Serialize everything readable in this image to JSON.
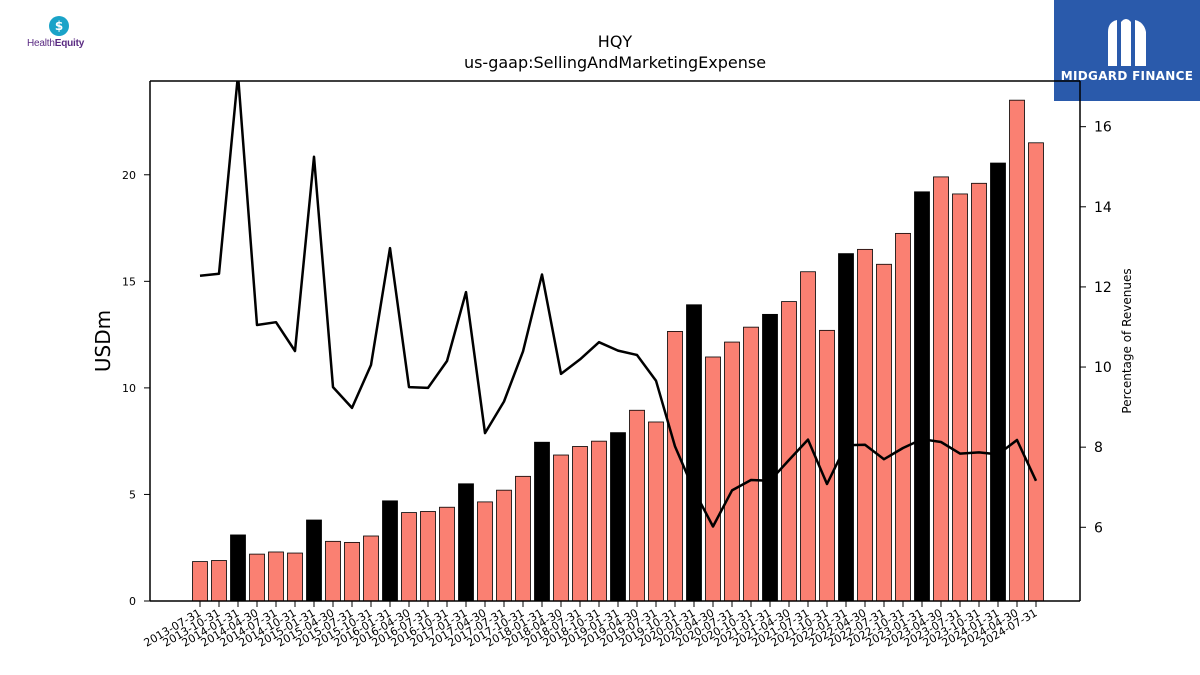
{
  "header": {
    "left_logo_text_a": "Health",
    "left_logo_text_b": "Equity",
    "left_logo_mark": "$",
    "right_logo_name": "MIDGARD FINANCE"
  },
  "colors": {
    "bar_regular": "#fa8072",
    "bar_highlight": "#000000",
    "line": "#000000",
    "right_logo_bg": "#2a5aab",
    "left_logo_accent": "#1aa3c8",
    "left_logo_text": "#5a2a82"
  },
  "icons": {
    "left_logo": "healthequity-drop-icon",
    "right_logo": "midgard-finance-mark-icon"
  },
  "chart_data": {
    "type": "bar",
    "title": "HQY",
    "subtitle": "us-gaap:SellingAndMarketingExpense",
    "ylabel": "USDm",
    "y2label": "Percentage of Revenues",
    "ylim": [
      0,
      24.4
    ],
    "y2lim": [
      4.16,
      17.14
    ],
    "yticks": [
      0,
      5,
      10,
      15,
      20
    ],
    "y2ticks": [
      6,
      8,
      10,
      12,
      14,
      16
    ],
    "grid": false,
    "categories": [
      "2013-07-31",
      "2013-10-31",
      "2014-01-31",
      "2014-04-30",
      "2014-07-31",
      "2014-10-31",
      "2015-01-31",
      "2015-04-30",
      "2015-07-31",
      "2015-10-31",
      "2016-01-31",
      "2016-04-30",
      "2016-07-31",
      "2016-10-31",
      "2017-01-31",
      "2017-04-30",
      "2017-07-31",
      "2017-10-31",
      "2018-01-31",
      "2018-04-30",
      "2018-07-31",
      "2018-10-31",
      "2019-01-31",
      "2019-04-30",
      "2019-07-31",
      "2019-10-31",
      "2020-01-31",
      "2020-04-30",
      "2020-07-31",
      "2020-10-31",
      "2021-01-31",
      "2021-04-30",
      "2021-07-31",
      "2021-10-31",
      "2022-01-31",
      "2022-04-30",
      "2022-07-31",
      "2022-10-31",
      "2023-01-31",
      "2023-04-30",
      "2023-07-31",
      "2023-10-31",
      "2024-01-31",
      "2024-04-30",
      "2024-07-31"
    ],
    "series": [
      {
        "type": "bar",
        "values": [
          1.85,
          1.9,
          3.1,
          2.2,
          2.3,
          2.25,
          3.8,
          2.8,
          2.75,
          3.05,
          4.7,
          4.15,
          4.2,
          4.4,
          5.5,
          4.65,
          5.2,
          5.85,
          7.45,
          6.85,
          7.25,
          7.5,
          7.9,
          8.95,
          8.4,
          12.65,
          13.9,
          11.45,
          12.15,
          12.85,
          13.45,
          14.05,
          15.45,
          12.7,
          16.3,
          16.5,
          15.8,
          17.25,
          19.2,
          19.9,
          19.1,
          19.6,
          20.55,
          23.5,
          21.5
        ],
        "highlight": [
          false,
          false,
          true,
          false,
          false,
          false,
          true,
          false,
          false,
          false,
          true,
          false,
          false,
          false,
          true,
          false,
          false,
          false,
          true,
          false,
          false,
          false,
          true,
          false,
          false,
          false,
          true,
          false,
          false,
          false,
          true,
          false,
          false,
          false,
          true,
          false,
          false,
          false,
          true,
          false,
          false,
          false,
          true,
          false,
          false
        ]
      },
      {
        "type": "line",
        "axis": "right",
        "values": [
          12.28,
          12.33,
          17.3,
          11.05,
          11.12,
          10.4,
          15.25,
          9.5,
          8.98,
          10.05,
          12.97,
          9.5,
          9.48,
          10.15,
          11.87,
          8.35,
          9.14,
          10.39,
          12.31,
          9.83,
          10.19,
          10.62,
          10.41,
          10.3,
          9.66,
          8.02,
          6.92,
          6.02,
          6.92,
          7.18,
          7.16,
          7.68,
          8.19,
          7.08,
          8.05,
          8.06,
          7.7,
          7.98,
          8.2,
          8.13,
          7.84,
          7.87,
          7.82,
          8.18,
          7.16
        ]
      }
    ]
  }
}
